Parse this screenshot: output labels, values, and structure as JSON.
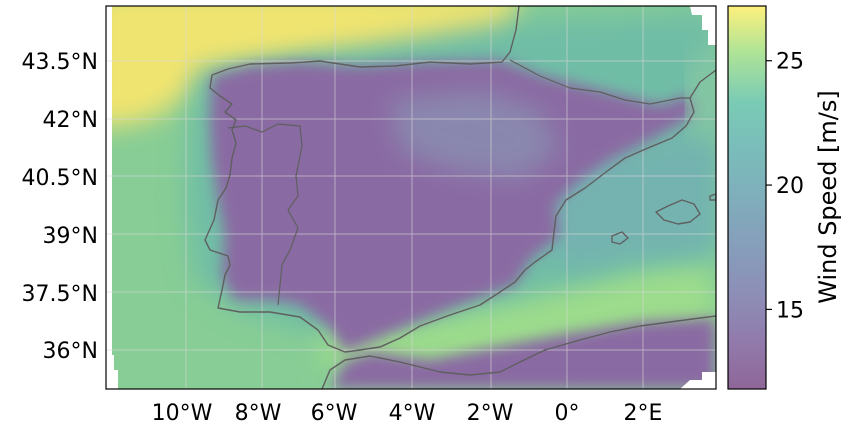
{
  "chart_data": {
    "type": "heatmap",
    "title": "",
    "variable": "Wind Speed",
    "xlabel": "",
    "ylabel": "",
    "lon_range": [
      -12,
      3.8
    ],
    "lat_range": [
      34.7,
      44.6
    ],
    "x_ticks": [
      {
        "value": -10,
        "label": "10°W"
      },
      {
        "value": -8,
        "label": "8°W"
      },
      {
        "value": -6,
        "label": "6°W"
      },
      {
        "value": -4,
        "label": "4°W"
      },
      {
        "value": -2,
        "label": "2°W"
      },
      {
        "value": 0,
        "label": "0°"
      },
      {
        "value": 2,
        "label": "2°E"
      }
    ],
    "y_ticks": [
      {
        "value": 43.5,
        "label": "43.5°N"
      },
      {
        "value": 42,
        "label": "42°N"
      },
      {
        "value": 40.5,
        "label": "40.5°N"
      },
      {
        "value": 39,
        "label": "39°N"
      },
      {
        "value": 37.5,
        "label": "37.5°N"
      },
      {
        "value": 36,
        "label": "36°N"
      }
    ],
    "colorbar": {
      "label": "Wind Speed [m/s]",
      "range": [
        11.8,
        27.2
      ],
      "ticks": [
        {
          "value": 15,
          "label": "15"
        },
        {
          "value": 20,
          "label": "20"
        },
        {
          "value": 25,
          "label": "25"
        }
      ],
      "colormap": "viridis",
      "alpha": 0.6
    },
    "grid": true,
    "field_summary": {
      "land_interior_iberia": 13.5,
      "central_plateau": 15,
      "mediterranean_coast": 19,
      "alboran_sea": 22,
      "atlantic_open": 23,
      "bay_of_biscay_north": 26.5
    },
    "colors": {
      "coastline": "#5f5f5f",
      "gridline": "#d9d9d9"
    }
  }
}
